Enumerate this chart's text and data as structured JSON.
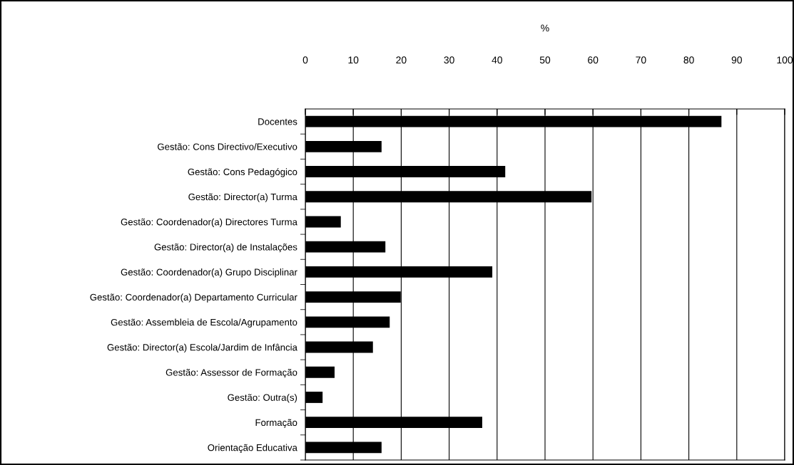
{
  "chart_data": {
    "type": "bar",
    "orientation": "horizontal",
    "xlabel": "%",
    "categories": [
      "Docentes",
      "Gestão: Cons Directivo/Executivo",
      "Gestão: Cons Pedagógico",
      "Gestão: Director(a) Turma",
      "Gestão: Coordenador(a) Directores Turma",
      "Gestão: Director(a) de Instalações",
      "Gestão: Coordenador(a) Grupo Disciplinar",
      "Gestão: Coordenador(a) Departamento Curricular",
      "Gestão: Assembleia de Escola/Agrupamento",
      "Gestão: Director(a) Escola/Jardim de Infância",
      "Gestão: Assessor de Formação",
      "Gestão: Outra(s)",
      "Formação",
      "Orientação Educativa"
    ],
    "values": [
      86.8,
      15.9,
      41.7,
      59.7,
      7.4,
      16.7,
      39.0,
      19.9,
      17.6,
      14.1,
      6.1,
      3.6,
      36.9,
      15.9
    ],
    "color": "#000000",
    "xlim": [
      0,
      100
    ],
    "xticks": [
      0,
      10,
      20,
      30,
      40,
      50,
      60,
      70,
      80,
      90,
      100
    ],
    "grid": "x",
    "legend": false
  }
}
